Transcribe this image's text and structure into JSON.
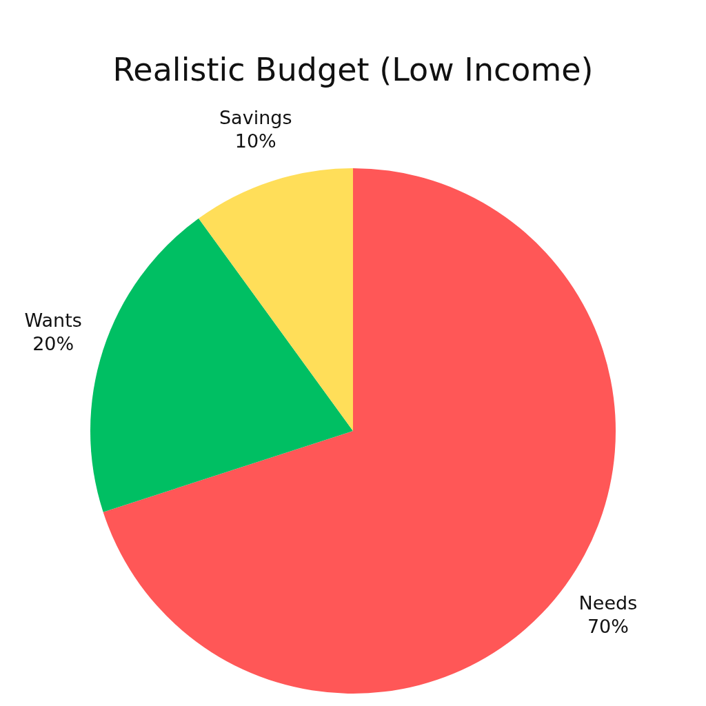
{
  "chart_data": {
    "type": "pie",
    "title": "Realistic Budget (Low Income)",
    "categories": [
      "Needs",
      "Wants",
      "Savings"
    ],
    "values": [
      70,
      20,
      10
    ],
    "colors": [
      "#ff5757",
      "#00bf63",
      "#ffde59"
    ],
    "value_labels": [
      "70%",
      "20%",
      "10%"
    ],
    "legend": false
  }
}
